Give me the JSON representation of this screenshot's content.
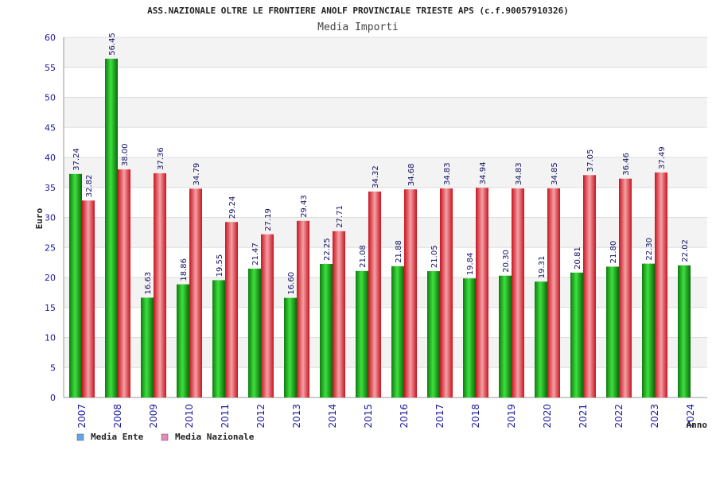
{
  "chart_data": {
    "type": "bar",
    "title": "ASS.NAZIONALE OLTRE LE FRONTIERE ANOLF PROVINCIALE TRIESTE APS (c.f.90057910326)",
    "subtitle": "Media Importi",
    "xlabel": "Anno",
    "ylabel": "Euro",
    "ylim": [
      0,
      60
    ],
    "yticks": [
      0,
      5,
      10,
      15,
      20,
      25,
      30,
      35,
      40,
      45,
      50,
      55,
      60
    ],
    "grid": true,
    "legend_position": "bottom-left",
    "categories": [
      "2007",
      "2008",
      "2009",
      "2010",
      "2011",
      "2012",
      "2013",
      "2014",
      "2015",
      "2016",
      "2017",
      "2018",
      "2019",
      "2020",
      "2021",
      "2022",
      "2023",
      "2024"
    ],
    "series": [
      {
        "name": "Media Ente",
        "color": "#22c022",
        "legend_color": "#5fa8e8",
        "values": [
          37.24,
          56.45,
          16.63,
          18.86,
          19.55,
          21.47,
          16.6,
          22.25,
          21.08,
          21.88,
          21.05,
          19.84,
          20.3,
          19.31,
          20.81,
          21.8,
          22.3,
          22.02
        ],
        "labels": [
          "37.24",
          "56.45",
          "16.63",
          "18.86",
          "19.55",
          "21.47",
          "16.60",
          "22.25",
          "21.08",
          "21.88",
          "21.05",
          "19.84",
          "20.30",
          "19.31",
          "20.81",
          "21.80",
          "22.30",
          "22.02"
        ]
      },
      {
        "name": "Media Nazionale",
        "color": "#e83a44",
        "legend_color": "#e88ab8",
        "values": [
          32.82,
          38.0,
          37.36,
          34.79,
          29.24,
          27.19,
          29.43,
          27.71,
          34.32,
          34.68,
          34.83,
          34.94,
          34.83,
          34.85,
          37.05,
          36.46,
          37.49,
          null
        ],
        "labels": [
          "32.82",
          "38.00",
          "37.36",
          "34.79",
          "29.24",
          "27.19",
          "29.43",
          "27.71",
          "34.32",
          "34.68",
          "34.83",
          "34.94",
          "34.83",
          "34.85",
          "37.05",
          "36.46",
          "37.49",
          null
        ]
      }
    ]
  }
}
